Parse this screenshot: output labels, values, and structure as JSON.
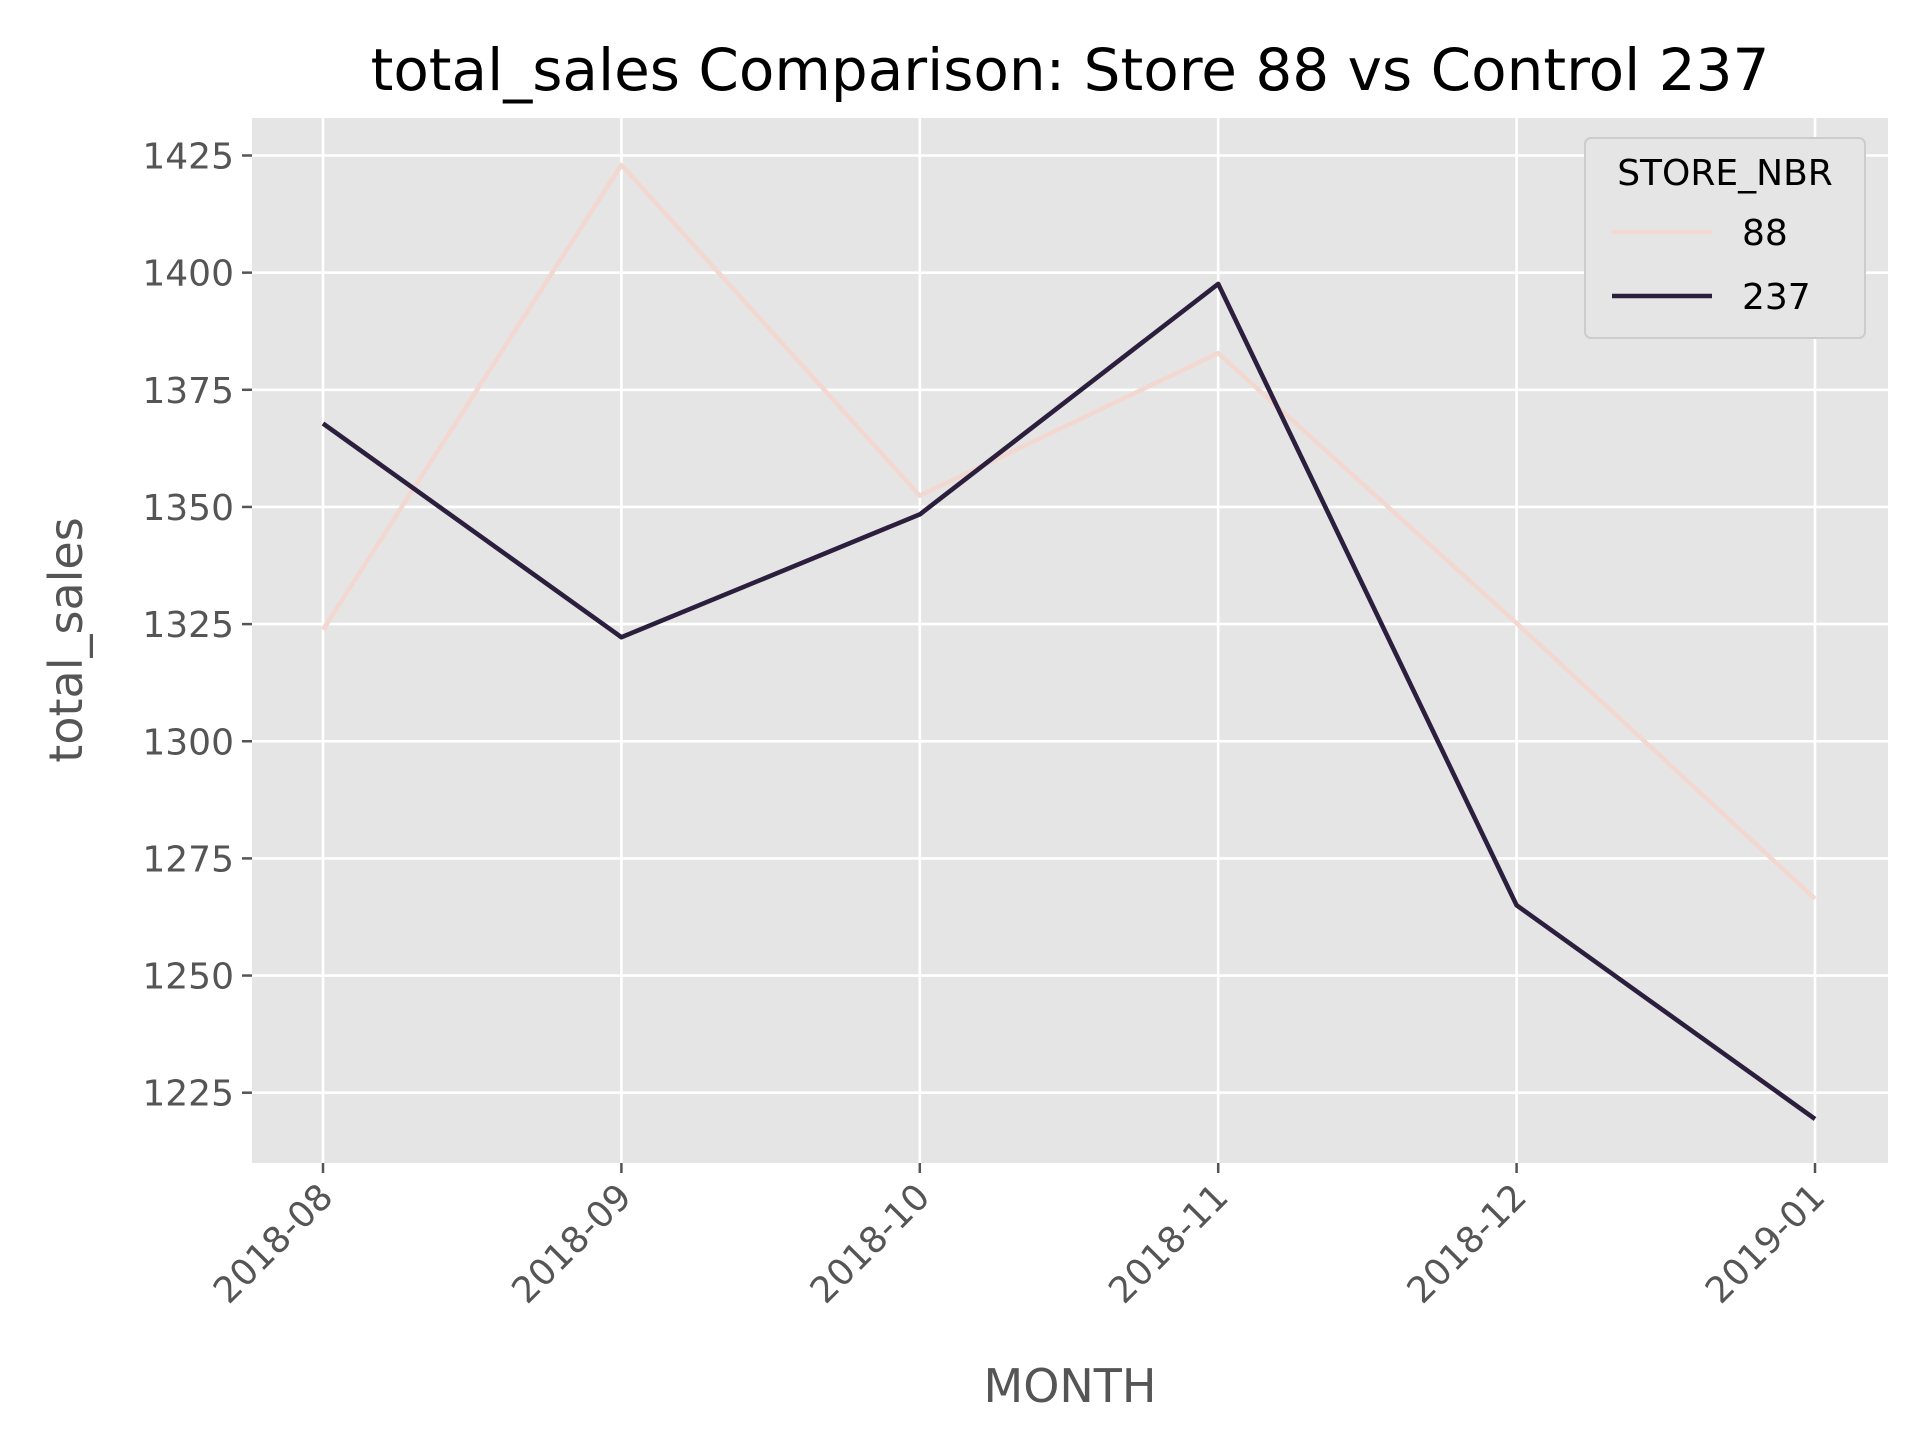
{
  "chart_data": {
    "type": "line",
    "title": "total_sales Comparison: Store 88 vs Control 237",
    "xlabel": "MONTH",
    "ylabel": "total_sales",
    "categories": [
      "2018-08",
      "2018-09",
      "2018-10",
      "2018-11",
      "2018-12",
      "2019-01"
    ],
    "ylim": [
      1210,
      1433
    ],
    "yticks": [
      1225,
      1250,
      1275,
      1300,
      1325,
      1350,
      1375,
      1400,
      1425
    ],
    "grid": true,
    "legend": {
      "title": "STORE_NBR",
      "placement": "top-right"
    },
    "series": [
      {
        "name": "88",
        "color": "#f2d8d1",
        "values": [
          1323.8,
          1423.0,
          1352.4,
          1382.8,
          1325.2,
          1266.4
        ]
      },
      {
        "name": "237",
        "color": "#2c1e3d",
        "values": [
          1367.8,
          1322.2,
          1348.4,
          1397.6,
          1265.0,
          1219.4
        ]
      }
    ],
    "colors": {
      "plot_background": "#e5e5e5",
      "grid": "#ffffff",
      "axis_text": "#555555"
    }
  }
}
